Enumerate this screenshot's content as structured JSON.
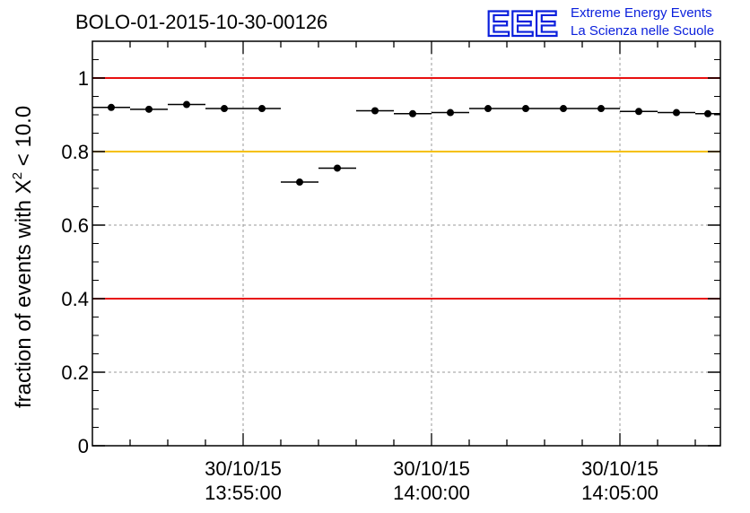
{
  "header": {
    "title": "BOLO-01-2015-10-30-00126"
  },
  "logo": {
    "mark": "EEE",
    "line1": "Extreme Energy Events",
    "line2": "La Scienza nelle Scuole",
    "color": "#0a1fdc"
  },
  "chart_data": {
    "type": "scatter",
    "ylabel_main": "fraction of events with Χ",
    "ylabel_sup": "2",
    "ylabel_tail": " < 10.0",
    "ylim": [
      0,
      1.1
    ],
    "xlim": [
      "13:51:00",
      "14:07:40"
    ],
    "yticks": [
      0,
      0.2,
      0.4,
      0.6,
      0.8,
      1
    ],
    "ytick_labels": [
      "0",
      "0.2",
      "0.4",
      "0.6",
      "0.8",
      "1"
    ],
    "xticks": [
      {
        "time": "13:55:00",
        "date_label": "30/10/15",
        "time_label": "13:55:00"
      },
      {
        "time": "14:00:00",
        "date_label": "30/10/15",
        "time_label": "14:00:00"
      },
      {
        "time": "14:05:00",
        "date_label": "30/10/15",
        "time_label": "14:05:00"
      }
    ],
    "grid": true,
    "series": [
      {
        "points": [
          {
            "start": "13:51:00",
            "end": "13:52:00",
            "y": 0.92
          },
          {
            "start": "13:52:00",
            "end": "13:53:00",
            "y": 0.915
          },
          {
            "start": "13:53:00",
            "end": "13:54:00",
            "y": 0.928
          },
          {
            "start": "13:54:00",
            "end": "13:55:00",
            "y": 0.917
          },
          {
            "start": "13:55:00",
            "end": "13:56:00",
            "y": 0.917
          },
          {
            "start": "13:56:00",
            "end": "13:57:00",
            "y": 0.717
          },
          {
            "start": "13:57:00",
            "end": "13:58:00",
            "y": 0.755
          },
          {
            "start": "13:58:00",
            "end": "13:59:00",
            "y": 0.911
          },
          {
            "start": "13:59:00",
            "end": "14:00:00",
            "y": 0.903
          },
          {
            "start": "14:00:00",
            "end": "14:01:00",
            "y": 0.906
          },
          {
            "start": "14:01:00",
            "end": "14:02:00",
            "y": 0.917
          },
          {
            "start": "14:02:00",
            "end": "14:03:00",
            "y": 0.917
          },
          {
            "start": "14:03:00",
            "end": "14:04:00",
            "y": 0.917
          },
          {
            "start": "14:04:00",
            "end": "14:05:00",
            "y": 0.917
          },
          {
            "start": "14:05:00",
            "end": "14:06:00",
            "y": 0.909
          },
          {
            "start": "14:06:00",
            "end": "14:07:00",
            "y": 0.906
          },
          {
            "start": "14:07:00",
            "end": "14:07:40",
            "y": 0.903
          }
        ]
      }
    ],
    "reference_lines": [
      {
        "y": 1.0,
        "color": "#e81010"
      },
      {
        "y": 0.8,
        "color": "#f5c000"
      },
      {
        "y": 0.4,
        "color": "#e81010"
      }
    ]
  }
}
